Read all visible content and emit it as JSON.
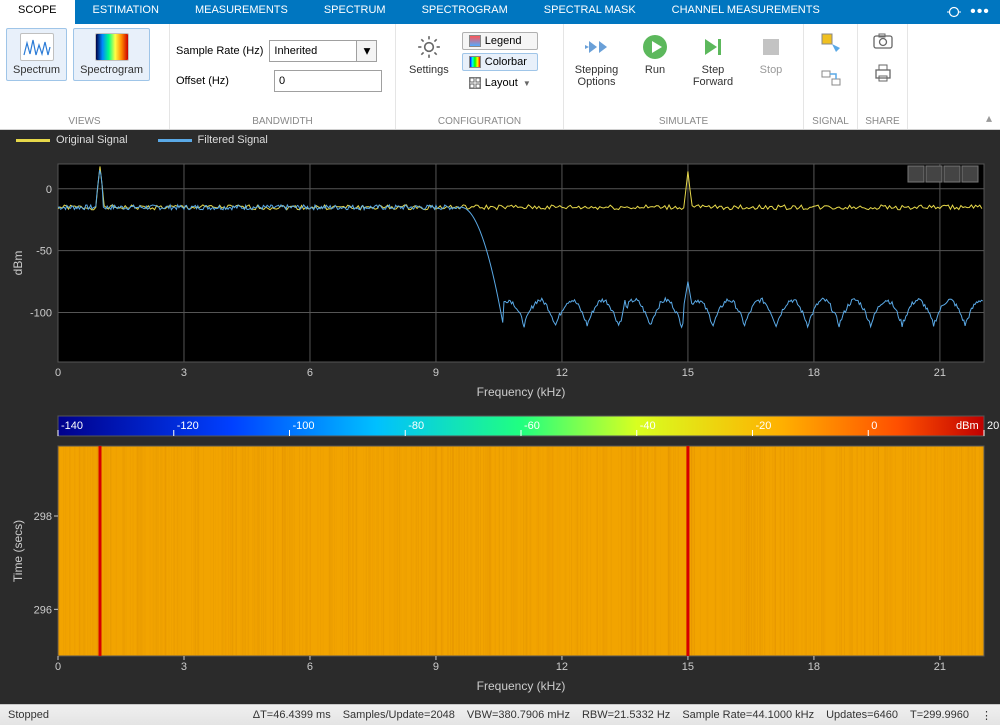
{
  "tabs": {
    "items": [
      "SCOPE",
      "ESTIMATION",
      "MEASUREMENTS",
      "SPECTRUM",
      "SPECTROGRAM",
      "SPECTRAL MASK",
      "CHANNEL MEASUREMENTS"
    ],
    "active_index": 0
  },
  "ribbon": {
    "views": {
      "label": "VIEWS",
      "spectrum_btn": "Spectrum",
      "spectrogram_btn": "Spectrogram",
      "spectrum_active": true,
      "spectrogram_active": true
    },
    "bandwidth": {
      "label": "BANDWIDTH",
      "sample_rate_label": "Sample Rate (Hz)",
      "sample_rate_value": "Inherited",
      "offset_label": "Offset (Hz)",
      "offset_value": "0"
    },
    "configuration": {
      "label": "CONFIGURATION",
      "settings_btn": "Settings",
      "legend_btn": "Legend",
      "colorbar_btn": "Colorbar",
      "layout_btn": "Layout"
    },
    "simulate": {
      "label": "SIMULATE",
      "stepping_btn": "Stepping\nOptions",
      "run_btn": "Run",
      "step_fwd_btn": "Step\nForward",
      "stop_btn": "Stop"
    },
    "signal": {
      "label": "SIGNAL"
    },
    "share": {
      "label": "SHARE"
    }
  },
  "legend": {
    "series": [
      {
        "name": "Original Signal",
        "color": "#e6d84a"
      },
      {
        "name": "Filtered Signal",
        "color": "#5aa9e6"
      }
    ]
  },
  "spectrum_chart": {
    "type": "line",
    "xlabel": "Frequency (kHz)",
    "ylabel": "dBm",
    "xlim": [
      0,
      22.05
    ],
    "ylim": [
      -140,
      20
    ],
    "xticks": [
      0,
      3,
      6,
      9,
      12,
      15,
      18,
      21
    ],
    "yticks": [
      -100,
      -50,
      0
    ],
    "background_color": "#000000",
    "grid_color": "#555555",
    "series": [
      {
        "name": "Original Signal",
        "color": "#e6d84a",
        "width": 1,
        "baseline_db": -15,
        "noise_amp": 2,
        "tones": [
          {
            "freq_khz": 1.0,
            "peak_db": 18
          },
          {
            "freq_khz": 15.0,
            "peak_db": 14
          }
        ]
      },
      {
        "name": "Filtered Signal",
        "color": "#5aa9e6",
        "width": 1,
        "passband_db": -15,
        "passband_noise": 2,
        "cutoff_khz": 9.6,
        "transition_khz": 1.0,
        "stopband_db": -110,
        "stopband_ripple_db": 20,
        "ripple_period_khz": 0.75,
        "tones": [
          {
            "freq_khz": 1.0,
            "peak_db": 18
          }
        ],
        "stopband_tones": [
          {
            "freq_khz": 15.0,
            "peak_db": -75
          },
          {
            "freq_khz": 13.5,
            "peak_db": -90
          },
          {
            "freq_khz": 16.0,
            "peak_db": -90
          }
        ]
      }
    ]
  },
  "colorbar": {
    "unit": "dBm",
    "ticks": [
      -140,
      -120,
      -100,
      -80,
      -60,
      -40,
      -20,
      0,
      20
    ],
    "stops": [
      {
        "v": -140,
        "c": "#00008b"
      },
      {
        "v": -110,
        "c": "#0040ff"
      },
      {
        "v": -85,
        "c": "#00c0ff"
      },
      {
        "v": -60,
        "c": "#20ff80"
      },
      {
        "v": -40,
        "c": "#d8ff20"
      },
      {
        "v": -15,
        "c": "#ffb000"
      },
      {
        "v": 5,
        "c": "#ff5000"
      },
      {
        "v": 30,
        "c": "#c00000"
      }
    ]
  },
  "spectrogram": {
    "type": "heatmap",
    "xlabel": "Frequency (kHz)",
    "ylabel": "Time (secs)",
    "xlim": [
      0,
      22.05
    ],
    "ylim": [
      295,
      299.5
    ],
    "xticks": [
      0,
      3,
      6,
      9,
      12,
      15,
      18,
      21
    ],
    "yticks": [
      296,
      298
    ],
    "background_db": -10,
    "background_color": "#f2a400",
    "tone_freqs_khz": [
      1.0,
      15.0
    ],
    "tone_color": "#d40000",
    "noise_texture": true
  },
  "status": {
    "state": "Stopped",
    "dt": "ΔT=46.4399 ms",
    "samples": "Samples/Update=2048",
    "vbw": "VBW=380.7906 mHz",
    "rbw": "RBW=21.5332 Hz",
    "sample_rate": "Sample Rate=44.1000 kHz",
    "updates": "Updates=6460",
    "t": "T=299.9960"
  },
  "colors": {
    "tab_bg": "#0076c0",
    "viewer_bg": "#2b2b2b",
    "plot_bg": "#000000"
  }
}
